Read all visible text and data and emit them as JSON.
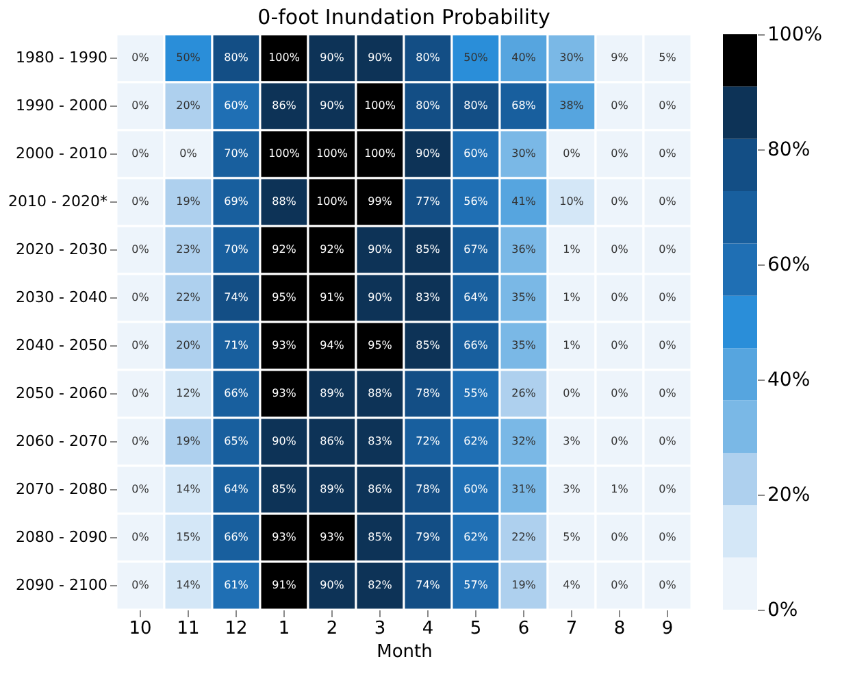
{
  "chart_data": {
    "type": "heatmap",
    "title": "0-foot Inundation Probability",
    "xlabel": "Month",
    "categories": [
      "10",
      "11",
      "12",
      "1",
      "2",
      "3",
      "4",
      "5",
      "6",
      "7",
      "8",
      "9"
    ],
    "y_categories": [
      "1980 - 1990",
      "1990 - 2000",
      "2000 - 2010",
      "2010 - 2020*",
      "2020 - 2030",
      "2030 - 2040",
      "2040 - 2050",
      "2050 - 2060",
      "2060 - 2070",
      "2070 - 2080",
      "2080 - 2090",
      "2090 - 2100"
    ],
    "cells": [
      [
        0,
        50,
        80,
        100,
        90,
        90,
        80,
        50,
        40,
        30,
        9,
        5
      ],
      [
        0,
        20,
        60,
        86,
        90,
        100,
        80,
        80,
        68,
        38,
        0,
        0
      ],
      [
        0,
        0,
        70,
        100,
        100,
        100,
        90,
        60,
        30,
        0,
        0,
        0
      ],
      [
        0,
        19,
        69,
        88,
        100,
        99,
        77,
        56,
        41,
        10,
        0,
        0
      ],
      [
        0,
        23,
        70,
        92,
        92,
        90,
        85,
        67,
        36,
        1,
        0,
        0
      ],
      [
        0,
        22,
        74,
        95,
        91,
        90,
        83,
        64,
        35,
        1,
        0,
        0
      ],
      [
        0,
        20,
        71,
        93,
        94,
        95,
        85,
        66,
        35,
        1,
        0,
        0
      ],
      [
        0,
        12,
        66,
        93,
        89,
        88,
        78,
        55,
        26,
        0,
        0,
        0
      ],
      [
        0,
        19,
        65,
        90,
        86,
        83,
        72,
        62,
        32,
        3,
        0,
        0
      ],
      [
        0,
        14,
        64,
        85,
        89,
        86,
        78,
        60,
        31,
        3,
        1,
        0
      ],
      [
        0,
        15,
        66,
        93,
        93,
        85,
        79,
        62,
        22,
        5,
        0,
        0
      ],
      [
        0,
        14,
        61,
        91,
        90,
        82,
        74,
        57,
        19,
        4,
        0,
        0
      ]
    ],
    "cell_labels": [
      [
        "0%",
        "50%",
        "80%",
        "100%",
        "90%",
        "90%",
        "80%",
        "50%",
        "40%",
        "30%",
        "9%",
        "5%"
      ],
      [
        "0%",
        "20%",
        "60%",
        "86%",
        "90%",
        "100%",
        "80%",
        "80%",
        "68%",
        "38%",
        "0%",
        "0%"
      ],
      [
        "0%",
        "0%",
        "70%",
        "100%",
        "100%",
        "100%",
        "90%",
        "60%",
        "30%",
        "0%",
        "0%",
        "0%"
      ],
      [
        "0%",
        "19%",
        "69%",
        "88%",
        "100%",
        "99%",
        "77%",
        "56%",
        "41%",
        "10%",
        "0%",
        "0%"
      ],
      [
        "0%",
        "23%",
        "70%",
        "92%",
        "92%",
        "90%",
        "85%",
        "67%",
        "36%",
        "1%",
        "0%",
        "0%"
      ],
      [
        "0%",
        "22%",
        "74%",
        "95%",
        "91%",
        "90%",
        "83%",
        "64%",
        "35%",
        "1%",
        "0%",
        "0%"
      ],
      [
        "0%",
        "20%",
        "71%",
        "93%",
        "94%",
        "95%",
        "85%",
        "66%",
        "35%",
        "1%",
        "0%",
        "0%"
      ],
      [
        "0%",
        "12%",
        "66%",
        "93%",
        "89%",
        "88%",
        "78%",
        "55%",
        "26%",
        "0%",
        "0%",
        "0%"
      ],
      [
        "0%",
        "19%",
        "65%",
        "90%",
        "86%",
        "83%",
        "72%",
        "62%",
        "32%",
        "3%",
        "0%",
        "0%"
      ],
      [
        "0%",
        "14%",
        "64%",
        "85%",
        "89%",
        "86%",
        "78%",
        "60%",
        "31%",
        "3%",
        "1%",
        "0%"
      ],
      [
        "0%",
        "15%",
        "66%",
        "93%",
        "93%",
        "85%",
        "79%",
        "62%",
        "22%",
        "5%",
        "0%",
        "0%"
      ],
      [
        "0%",
        "14%",
        "61%",
        "91%",
        "90%",
        "82%",
        "74%",
        "57%",
        "19%",
        "4%",
        "0%",
        "0%"
      ]
    ],
    "colors": [
      "#edf4fb",
      "#d4e7f7",
      "#aed0ee",
      "#7ab8e6",
      "#56a5df",
      "#2a8ed9",
      "#1f6fb4",
      "#185f9e",
      "#134e85",
      "#0d3357",
      "#000000"
    ],
    "clim": [
      0,
      100
    ],
    "cticks": [
      {
        "value": 0,
        "label": "0%"
      },
      {
        "value": 20,
        "label": "20%"
      },
      {
        "value": 40,
        "label": "40%"
      },
      {
        "value": 60,
        "label": "60%"
      },
      {
        "value": 80,
        "label": "80%"
      },
      {
        "value": 100,
        "label": "100%"
      }
    ]
  }
}
